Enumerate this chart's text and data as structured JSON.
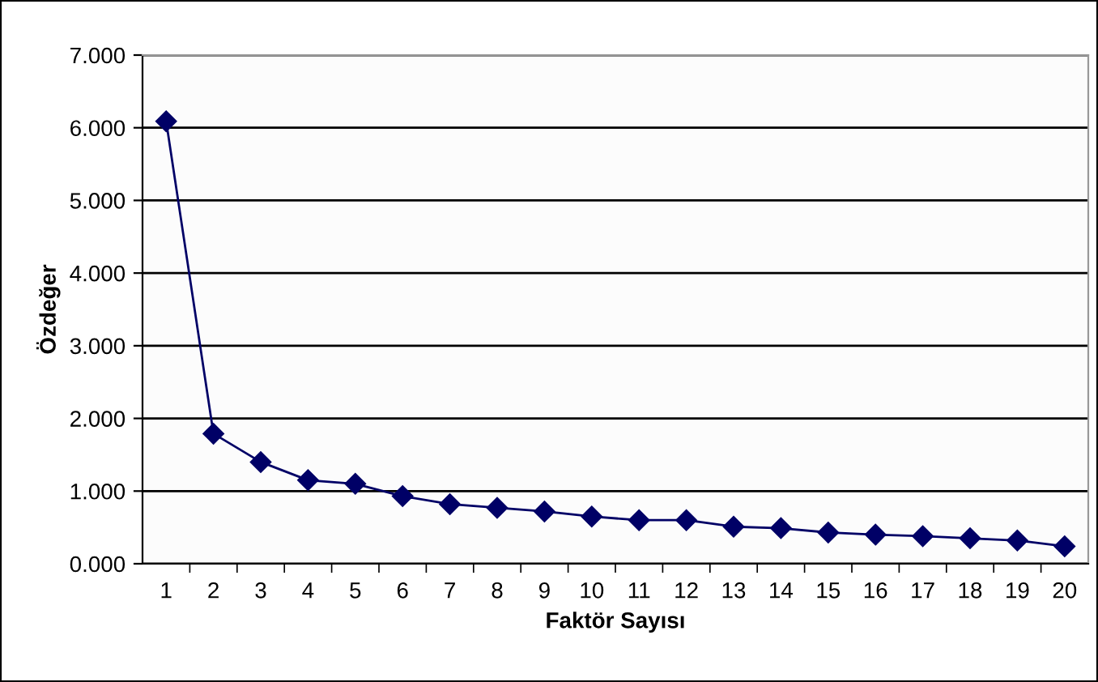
{
  "chart_data": {
    "type": "line",
    "xlabel": "Faktör Sayısı",
    "ylabel": "Özdeğer",
    "categories": [
      "1",
      "2",
      "3",
      "4",
      "5",
      "6",
      "7",
      "8",
      "9",
      "10",
      "11",
      "12",
      "13",
      "14",
      "15",
      "16",
      "17",
      "18",
      "19",
      "20"
    ],
    "series": [
      {
        "color": "#000066",
        "values": [
          6.09,
          1.79,
          1.4,
          1.15,
          1.1,
          0.93,
          0.82,
          0.77,
          0.72,
          0.65,
          0.6,
          0.6,
          0.51,
          0.49,
          0.43,
          0.4,
          0.38,
          0.35,
          0.32,
          0.24
        ]
      }
    ],
    "ylim": [
      0,
      7
    ],
    "yticks": [
      {
        "value": 0,
        "label": "0.000"
      },
      {
        "value": 1,
        "label": "1.000"
      },
      {
        "value": 2,
        "label": "2.000"
      },
      {
        "value": 3,
        "label": "3.000"
      },
      {
        "value": 4,
        "label": "4.000"
      },
      {
        "value": 5,
        "label": "5.000"
      },
      {
        "value": 6,
        "label": "6.000"
      },
      {
        "value": 7,
        "label": "7.000"
      }
    ],
    "grid": "y",
    "marker": "diamond",
    "line_style": "solid",
    "legend": false
  }
}
